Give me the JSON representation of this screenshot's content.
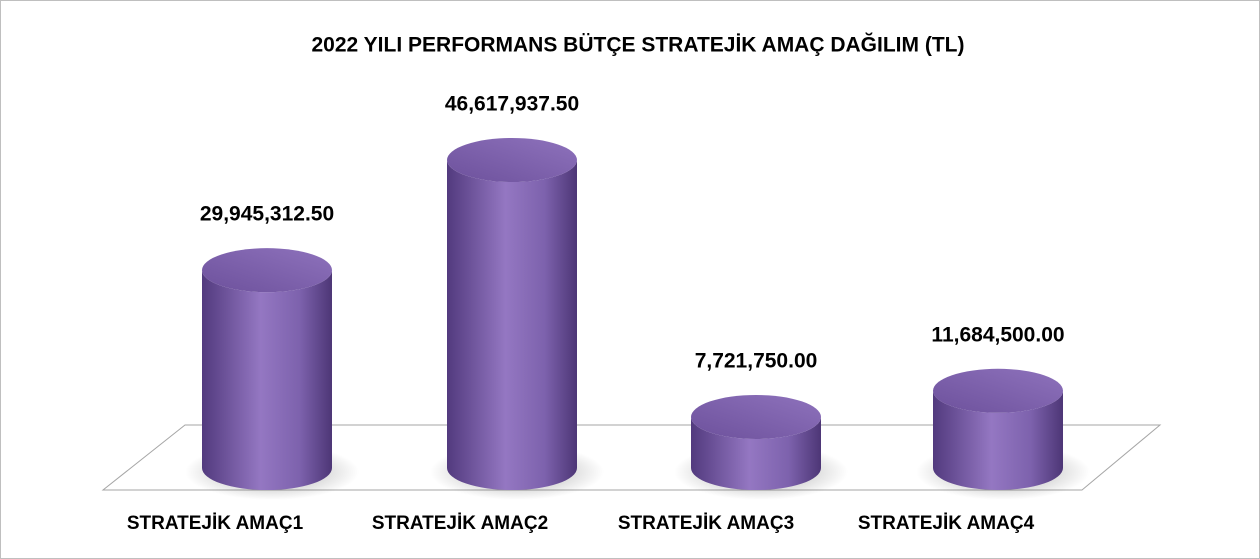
{
  "chart_data": {
    "type": "cylinder",
    "title": "2022 YILI PERFORMANS BÜTÇE STRATEJİK AMAÇ DAĞILIM (TL)",
    "categories": [
      "STRATEJİK AMAÇ1",
      "STRATEJİK AMAÇ2",
      "STRATEJİK AMAÇ3",
      "STRATEJİK AMAÇ4"
    ],
    "values": [
      29945312.5,
      46617937.5,
      7721750,
      11684500
    ],
    "value_labels": [
      "29,945,312.50",
      "46,617,937.50",
      "7,721,750.00",
      "11,684,500.00"
    ],
    "color": "#7b5ea7"
  }
}
